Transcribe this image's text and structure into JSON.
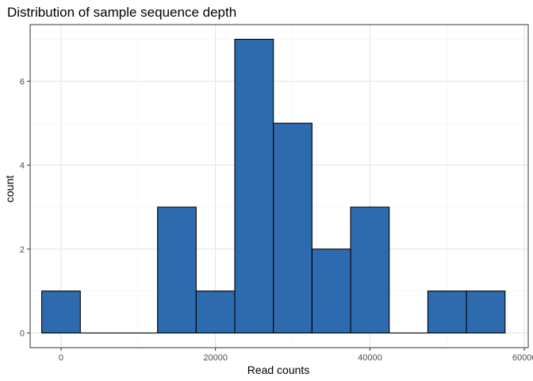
{
  "chart_data": {
    "type": "bar",
    "title": "Distribution of sample sequence depth",
    "xlabel": "Read counts",
    "ylabel": "count",
    "bin_width": 5000,
    "bins": [
      {
        "center": 0,
        "count": 1
      },
      {
        "center": 5000,
        "count": 0
      },
      {
        "center": 10000,
        "count": 0
      },
      {
        "center": 15000,
        "count": 3
      },
      {
        "center": 20000,
        "count": 1
      },
      {
        "center": 25000,
        "count": 7
      },
      {
        "center": 30000,
        "count": 5
      },
      {
        "center": 35000,
        "count": 2
      },
      {
        "center": 40000,
        "count": 3
      },
      {
        "center": 45000,
        "count": 0
      },
      {
        "center": 50000,
        "count": 1
      },
      {
        "center": 55000,
        "count": 1
      }
    ],
    "xlim": [
      -4000,
      60500
    ],
    "ylim": [
      -0.35,
      7.35
    ],
    "x_ticks": [
      0,
      20000,
      40000,
      60000
    ],
    "x_tick_labels": [
      "0",
      "20000",
      "40000",
      "60000"
    ],
    "y_ticks": [
      0,
      2,
      4,
      6
    ],
    "y_tick_labels": [
      "0",
      "2",
      "4",
      "6"
    ],
    "grid": true,
    "bar_fill": "#2e6bae",
    "bar_outline": "#000000"
  }
}
